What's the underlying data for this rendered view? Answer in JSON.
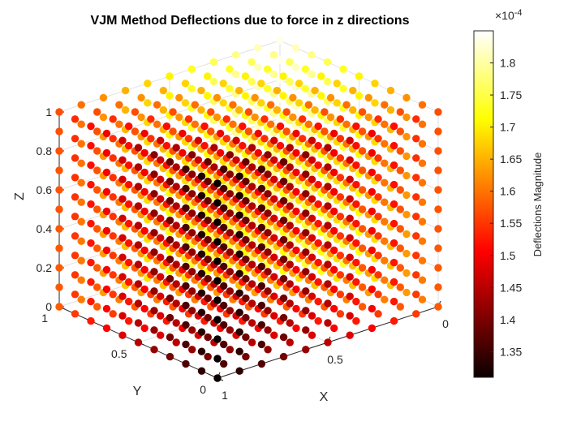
{
  "chart_data": {
    "type": "scatter",
    "title": "VJM Method Deflections due to force in z directions",
    "xlabel": "X",
    "ylabel": "Y",
    "zlabel": "Z",
    "xlim": [
      0,
      1
    ],
    "ylim": [
      0,
      1
    ],
    "zlim": [
      0,
      1
    ],
    "x_ticks": [
      "0",
      "0.5",
      "1"
    ],
    "y_ticks": [
      "0",
      "0.5",
      "1"
    ],
    "z_ticks": [
      "0",
      "0.2",
      "0.4",
      "0.6",
      "0.8",
      "1"
    ],
    "grid": true,
    "grid_points": {
      "x": [
        0,
        0.1,
        0.2,
        0.3,
        0.4,
        0.5,
        0.6,
        0.7,
        0.8,
        0.9,
        1.0
      ],
      "y": [
        0,
        0.1,
        0.2,
        0.3,
        0.4,
        0.5,
        0.6,
        0.7,
        0.8,
        0.9,
        1.0
      ],
      "z": [
        0,
        0.1,
        0.2,
        0.3,
        0.4,
        0.5,
        0.6,
        0.7,
        0.8,
        0.9,
        1.0
      ]
    },
    "deflection_model": "magnitude increases with Y and decreases with X; nearly independent of Z",
    "deflection_min_1e4": 1.31,
    "deflection_max_1e4": 1.85,
    "colormap": "hot",
    "colorbar": {
      "label": "Deflections Magnitude",
      "exponent_label": "×10",
      "exponent_power": "-4",
      "range": [
        1.31,
        1.85
      ],
      "ticks": [
        "1.35",
        "1.4",
        "1.45",
        "1.5",
        "1.55",
        "1.6",
        "1.65",
        "1.7",
        "1.75",
        "1.8"
      ]
    }
  }
}
